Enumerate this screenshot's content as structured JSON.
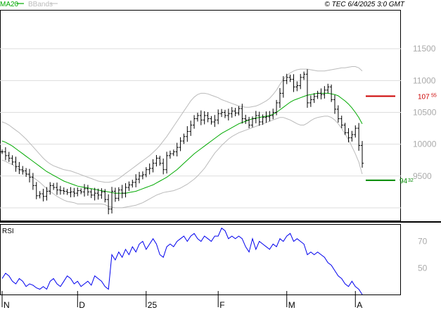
{
  "header": {
    "legend_ma": "MA20",
    "legend_bb": "BBands",
    "timestamp": "© TEC 6/4/2025 3:0 GMT"
  },
  "chart_data": [
    {
      "type": "candlestick",
      "title": "",
      "price_axis": {
        "ticks": [
          {
            "value": 11500,
            "label": "11500"
          },
          {
            "value": 11000,
            "label": "11000"
          },
          {
            "value": 10500,
            "label": "10500"
          },
          {
            "value": 10000,
            "label": "10000"
          },
          {
            "value": 9500,
            "label": "9500"
          }
        ],
        "ylim": [
          8800,
          12100
        ]
      },
      "x_ticks": [
        {
          "index": 0,
          "label": "N"
        },
        {
          "index": 22,
          "label": "D"
        },
        {
          "index": 42,
          "label": "25"
        },
        {
          "index": 63,
          "label": "F"
        },
        {
          "index": 83,
          "label": "M"
        },
        {
          "index": 103,
          "label": "A"
        }
      ],
      "n_bars": 106,
      "closes": [
        9880,
        9820,
        9780,
        9720,
        9650,
        9600,
        9580,
        9530,
        9480,
        9350,
        9190,
        9220,
        9180,
        9260,
        9350,
        9320,
        9280,
        9270,
        9260,
        9240,
        9250,
        9230,
        9270,
        9250,
        9300,
        9250,
        9200,
        9230,
        9200,
        9250,
        9130,
        8980,
        9260,
        9150,
        9280,
        9230,
        9320,
        9360,
        9400,
        9450,
        9500,
        9520,
        9600,
        9620,
        9700,
        9780,
        9700,
        9600,
        9820,
        9850,
        9880,
        9950,
        10050,
        10120,
        10200,
        10300,
        10400,
        10450,
        10380,
        10450,
        10400,
        10350,
        10380,
        10480,
        10500,
        10450,
        10480,
        10520,
        10490,
        10560,
        10400,
        10380,
        10300,
        10400,
        10450,
        10350,
        10420,
        10430,
        10450,
        10500,
        10650,
        10800,
        11000,
        11050,
        11020,
        10900,
        10920,
        11050,
        11100,
        10650,
        10700,
        10750,
        10800,
        10780,
        10850,
        10900,
        10700,
        10550,
        10400,
        10300,
        10180,
        10100,
        10150,
        10250,
        9980,
        9700
      ],
      "ma20": [
        10050,
        10030,
        10000,
        9970,
        9930,
        9890,
        9850,
        9810,
        9770,
        9730,
        9690,
        9650,
        9610,
        9570,
        9540,
        9510,
        9480,
        9450,
        9420,
        9400,
        9380,
        9360,
        9340,
        9330,
        9320,
        9310,
        9300,
        9290,
        9280,
        9270,
        9260,
        9250,
        9240,
        9230,
        9230,
        9230,
        9230,
        9240,
        9250,
        9260,
        9280,
        9300,
        9320,
        9340,
        9360,
        9390,
        9420,
        9450,
        9480,
        9520,
        9560,
        9600,
        9650,
        9700,
        9750,
        9800,
        9850,
        9890,
        9930,
        9970,
        10010,
        10050,
        10090,
        10130,
        10170,
        10200,
        10230,
        10260,
        10290,
        10320,
        10340,
        10360,
        10380,
        10400,
        10410,
        10420,
        10430,
        10440,
        10450,
        10470,
        10500,
        10540,
        10580,
        10620,
        10660,
        10690,
        10710,
        10730,
        10750,
        10770,
        10780,
        10790,
        10800,
        10800,
        10800,
        10800,
        10790,
        10780,
        10760,
        10720,
        10680,
        10630,
        10570,
        10500,
        10420,
        10320
      ],
      "bb_upper": [
        10350,
        10330,
        10300,
        10260,
        10220,
        10180,
        10130,
        10080,
        10020,
        9960,
        9900,
        9840,
        9780,
        9730,
        9690,
        9660,
        9640,
        9620,
        9600,
        9590,
        9580,
        9560,
        9540,
        9520,
        9500,
        9480,
        9460,
        9440,
        9420,
        9410,
        9400,
        9400,
        9410,
        9430,
        9460,
        9500,
        9540,
        9580,
        9620,
        9660,
        9700,
        9740,
        9780,
        9820,
        9870,
        9920,
        9980,
        10050,
        10120,
        10200,
        10280,
        10360,
        10440,
        10520,
        10600,
        10680,
        10740,
        10780,
        10800,
        10800,
        10790,
        10770,
        10750,
        10730,
        10700,
        10680,
        10660,
        10640,
        10620,
        10600,
        10590,
        10580,
        10580,
        10590,
        10600,
        10620,
        10650,
        10680,
        10720,
        10780,
        10850,
        10940,
        11020,
        11080,
        11120,
        11150,
        11170,
        11180,
        11180,
        11180,
        11170,
        11160,
        11150,
        11150,
        11150,
        11160,
        11170,
        11180,
        11190,
        11200,
        11200,
        11210,
        11220,
        11220,
        11200,
        11150
      ],
      "bb_lower": [
        9750,
        9730,
        9700,
        9680,
        9640,
        9600,
        9570,
        9540,
        9510,
        9480,
        9440,
        9400,
        9350,
        9300,
        9260,
        9220,
        9180,
        9150,
        9120,
        9100,
        9090,
        9080,
        9060,
        9060,
        9060,
        9060,
        9060,
        9060,
        9060,
        9060,
        9050,
        9020,
        9010,
        9000,
        9000,
        9000,
        9010,
        9020,
        9030,
        9040,
        9060,
        9080,
        9110,
        9140,
        9170,
        9200,
        9220,
        9240,
        9250,
        9260,
        9270,
        9290,
        9310,
        9340,
        9370,
        9410,
        9450,
        9500,
        9560,
        9620,
        9700,
        9780,
        9860,
        9920,
        9980,
        10030,
        10080,
        10120,
        10150,
        10180,
        10200,
        10220,
        10240,
        10260,
        10280,
        10300,
        10320,
        10340,
        10360,
        10380,
        10400,
        10420,
        10420,
        10400,
        10380,
        10350,
        10320,
        10300,
        10300,
        10330,
        10370,
        10400,
        10420,
        10430,
        10440,
        10440,
        10420,
        10380,
        10320,
        10250,
        10160,
        10070,
        9960,
        9850,
        9720,
        9530
      ]
    },
    {
      "type": "line",
      "title": "RSI",
      "axis_ticks": [
        {
          "value": 70,
          "label": "70"
        },
        {
          "value": 50,
          "label": "50"
        }
      ],
      "ylim": [
        30,
        82
      ],
      "values": [
        42,
        46,
        44,
        40,
        38,
        42,
        40,
        36,
        38,
        37,
        35,
        34,
        36,
        34,
        40,
        42,
        38,
        36,
        40,
        44,
        42,
        38,
        40,
        36,
        38,
        40,
        37,
        44,
        42,
        40,
        36,
        34,
        60,
        56,
        62,
        58,
        64,
        60,
        66,
        62,
        68,
        70,
        64,
        68,
        72,
        68,
        60,
        58,
        66,
        68,
        66,
        70,
        72,
        74,
        70,
        74,
        76,
        72,
        70,
        74,
        72,
        70,
        74,
        74,
        80,
        78,
        72,
        74,
        72,
        74,
        72,
        66,
        62,
        72,
        64,
        70,
        68,
        66,
        64,
        68,
        66,
        72,
        70,
        74,
        76,
        70,
        72,
        70,
        68,
        60,
        62,
        60,
        62,
        60,
        58,
        54,
        52,
        48,
        44,
        42,
        38,
        36,
        40,
        36,
        34,
        30
      ],
      "series_color": "#0000ee"
    }
  ],
  "colors": {
    "ma20": "#00aa00",
    "bbands": "#bbbbbb",
    "grid": "#dddddd",
    "resistance": "#cc0000",
    "support": "#008800"
  },
  "levels": {
    "resistance": {
      "value": 10755,
      "label": "107",
      "sup": "55"
    },
    "support": {
      "value": 9432,
      "label": "94",
      "sup": "32"
    }
  }
}
